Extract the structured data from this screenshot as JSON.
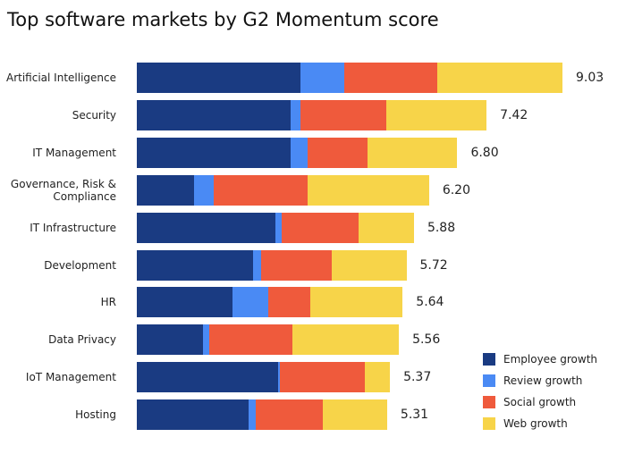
{
  "chart_data": {
    "type": "stacked-bar-horizontal",
    "title": "Top software markets by G2 Momentum score",
    "categories": [
      "Artificial Intelligence",
      "Security",
      "IT Management",
      "Governance, Risk & Compliance",
      "IT Infrastructure",
      "Development",
      "HR",
      "Data Privacy",
      "IoT Management",
      "Hosting"
    ],
    "series": [
      {
        "name": "Employee growth",
        "color": "#1a3b82",
        "values": [
          3.47,
          3.26,
          3.26,
          1.21,
          2.94,
          2.47,
          2.03,
          1.4,
          3.0,
          2.37
        ]
      },
      {
        "name": "Review growth",
        "color": "#4a8af4",
        "values": [
          0.93,
          0.21,
          0.36,
          0.42,
          0.13,
          0.17,
          0.76,
          0.13,
          0.04,
          0.15
        ]
      },
      {
        "name": "Social growth",
        "color": "#ef5a3c",
        "values": [
          1.97,
          1.82,
          1.27,
          1.99,
          1.63,
          1.5,
          0.89,
          1.78,
          1.8,
          1.42
        ]
      },
      {
        "name": "Web growth",
        "color": "#f7d449",
        "values": [
          2.66,
          2.13,
          1.91,
          2.58,
          1.18,
          1.58,
          1.96,
          2.25,
          0.53,
          1.37
        ]
      }
    ],
    "totals": [
      9.03,
      7.42,
      6.8,
      6.2,
      5.88,
      5.72,
      5.64,
      5.56,
      5.37,
      5.31
    ],
    "total_labels": [
      "9.03",
      "7.42",
      "6.80",
      "6.20",
      "5.88",
      "5.72",
      "5.64",
      "5.56",
      "5.37",
      "5.31"
    ],
    "legend": "bottom-right"
  }
}
